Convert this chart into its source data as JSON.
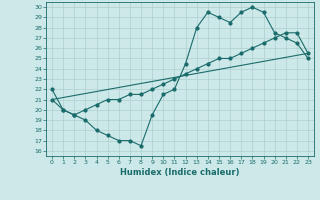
{
  "xlabel": "Humidex (Indice chaleur)",
  "bg_color": "#cde8e8",
  "line_color": "#1a6b6b",
  "grid_color": "#aed0d0",
  "xlim": [
    -0.5,
    23.5
  ],
  "ylim": [
    15.5,
    30.5
  ],
  "xticks": [
    0,
    1,
    2,
    3,
    4,
    5,
    6,
    7,
    8,
    9,
    10,
    11,
    12,
    13,
    14,
    15,
    16,
    17,
    18,
    19,
    20,
    21,
    22,
    23
  ],
  "yticks": [
    16,
    17,
    18,
    19,
    20,
    21,
    22,
    23,
    24,
    25,
    26,
    27,
    28,
    29,
    30
  ],
  "line1_x": [
    0,
    1,
    2,
    3,
    4,
    5,
    6,
    7,
    8,
    9,
    10,
    11,
    12,
    13,
    14,
    15,
    16,
    17,
    18,
    19,
    20,
    21,
    22,
    23
  ],
  "line1_y": [
    22,
    20,
    19.5,
    19,
    18,
    17.5,
    17,
    17,
    16.5,
    19.5,
    21.5,
    22,
    24.5,
    28,
    29.5,
    29,
    28.5,
    29.5,
    30,
    29.5,
    27.5,
    27,
    26.5,
    25
  ],
  "line2_x": [
    0,
    23
  ],
  "line2_y": [
    21,
    25.5
  ],
  "line3_x": [
    0,
    1,
    2,
    3,
    4,
    5,
    6,
    7,
    8,
    9,
    10,
    11,
    12,
    13,
    14,
    15,
    16,
    17,
    18,
    19,
    20,
    21,
    22,
    23
  ],
  "line3_y": [
    21,
    20,
    19.5,
    20,
    20.5,
    21,
    21,
    21.5,
    21.5,
    22,
    22.5,
    23,
    23.5,
    24,
    24.5,
    25,
    25,
    25.5,
    26,
    26.5,
    27,
    27.5,
    27.5,
    25.5
  ]
}
